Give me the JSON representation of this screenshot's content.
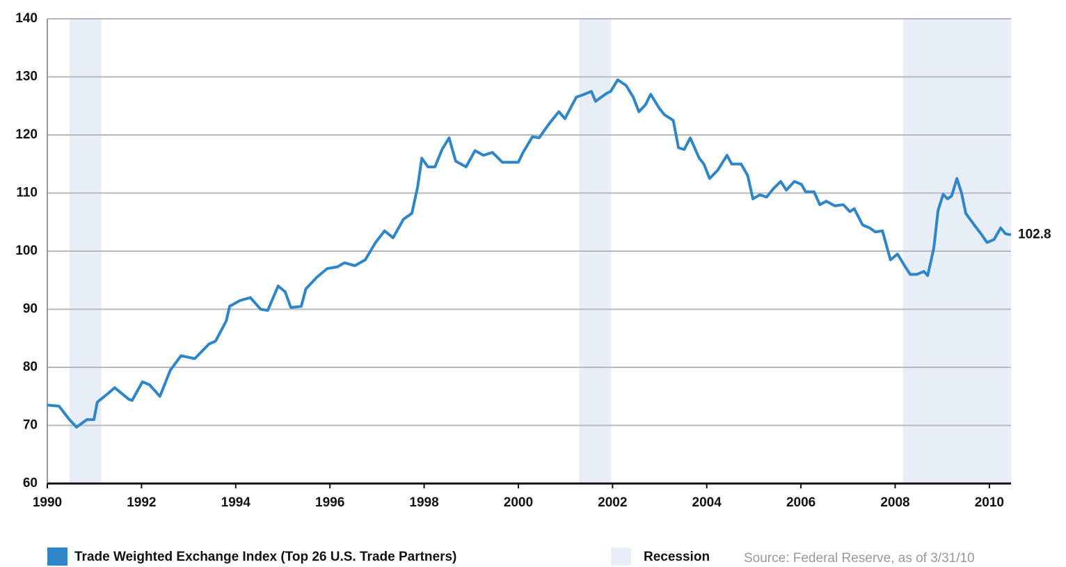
{
  "chart_data": {
    "type": "line",
    "x": [
      1990.0,
      1990.25,
      1990.47,
      1990.62,
      1990.84,
      1990.99,
      1991.06,
      1991.29,
      1991.43,
      1991.73,
      1991.8,
      1992.02,
      1992.17,
      1992.39,
      1992.61,
      1992.84,
      1993.13,
      1993.43,
      1993.57,
      1993.8,
      1993.87,
      1994.09,
      1994.31,
      1994.53,
      1994.68,
      1994.9,
      1995.05,
      1995.17,
      1995.39,
      1995.49,
      1995.72,
      1995.94,
      1996.16,
      1996.31,
      1996.53,
      1996.75,
      1996.97,
      1997.16,
      1997.34,
      1997.56,
      1997.74,
      1997.86,
      1997.95,
      1998.08,
      1998.23,
      1998.38,
      1998.53,
      1998.67,
      1998.89,
      1999.08,
      1999.26,
      1999.45,
      1999.66,
      1999.85,
      2000.0,
      2000.1,
      2000.3,
      2000.44,
      2000.66,
      2000.86,
      2000.99,
      2001.23,
      2001.4,
      2001.55,
      2001.64,
      2001.88,
      2001.96,
      2002.11,
      2002.29,
      2002.44,
      2002.56,
      2002.7,
      2002.81,
      2003.0,
      2003.1,
      2003.29,
      2003.4,
      2003.52,
      2003.65,
      2003.84,
      2003.94,
      2004.06,
      2004.24,
      2004.43,
      2004.53,
      2004.73,
      2004.87,
      2004.98,
      2005.13,
      2005.27,
      2005.42,
      2005.57,
      2005.69,
      2005.86,
      2006.01,
      2006.1,
      2006.28,
      2006.4,
      2006.54,
      2006.72,
      2006.9,
      2007.04,
      2007.13,
      2007.31,
      2007.46,
      2007.58,
      2007.73,
      2007.9,
      2008.05,
      2008.2,
      2008.32,
      2008.46,
      2008.61,
      2008.69,
      2008.82,
      2008.91,
      2009.02,
      2009.11,
      2009.2,
      2009.31,
      2009.41,
      2009.5,
      2009.68,
      2009.82,
      2009.95,
      2010.1,
      2010.24,
      2010.34,
      2010.46
    ],
    "series": [
      {
        "name": "Trade Weighted Exchange Index (Top 26 U.S. Trade Partners)",
        "color": "#2e86c8",
        "values": [
          73.5,
          73.3,
          71,
          69.7,
          71,
          71,
          74,
          75.5,
          76.5,
          74.5,
          74.3,
          77.5,
          77,
          75,
          79.5,
          82,
          81.5,
          84,
          84.5,
          88,
          90.5,
          91.5,
          92,
          90,
          89.8,
          94,
          93,
          90.3,
          90.5,
          93.5,
          95.5,
          97,
          97.3,
          98,
          97.5,
          98.5,
          101.5,
          103.5,
          102.3,
          105.5,
          106.5,
          111,
          116,
          114.5,
          114.5,
          117.5,
          119.5,
          115.5,
          114.5,
          117.3,
          116.5,
          117,
          115.3,
          115.3,
          115.3,
          117,
          119.7,
          119.5,
          122,
          124,
          122.8,
          126.5,
          127,
          127.5,
          125.8,
          127.2,
          127.5,
          129.5,
          128.5,
          126.5,
          124,
          125.2,
          127,
          124.5,
          123.5,
          122.5,
          117.8,
          117.5,
          119.5,
          116,
          115,
          112.5,
          114,
          116.5,
          115,
          115,
          113,
          109,
          109.7,
          109.3,
          110.8,
          112,
          110.5,
          112,
          111.5,
          110.2,
          110.2,
          108,
          108.6,
          107.8,
          108,
          106.8,
          107.3,
          104.5,
          104,
          103.3,
          103.5,
          98.5,
          99.5,
          97.5,
          96,
          96,
          96.5,
          95.8,
          100.5,
          107,
          109.8,
          109,
          109.5,
          112.5,
          110,
          106.5,
          104.5,
          103,
          101.5,
          102,
          104,
          103,
          102.8
        ]
      }
    ],
    "last_value_label": "102.8",
    "recession": {
      "name": "Recession",
      "color": "#e8eef8",
      "periods": [
        [
          1990.47,
          1991.15
        ],
        [
          2001.29,
          2001.97
        ],
        [
          2008.17,
          2010.46
        ]
      ]
    },
    "xlim": [
      1990,
      2010.46
    ],
    "xticks": [
      1990,
      1992,
      1994,
      1996,
      1998,
      2000,
      2002,
      2004,
      2006,
      2008,
      2010
    ],
    "ylim": [
      60,
      140
    ],
    "yticks": [
      60,
      70,
      80,
      90,
      100,
      110,
      120,
      130,
      140
    ],
    "grid": true,
    "source": "Source: Federal Reserve, as of 3/31/10"
  }
}
